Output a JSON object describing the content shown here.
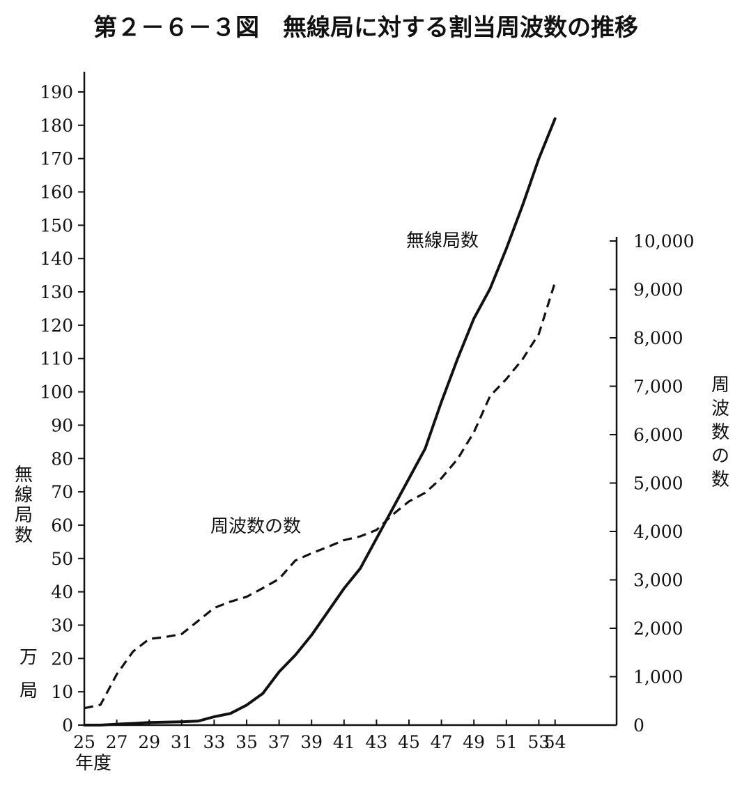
{
  "chart_data": {
    "type": "line",
    "title": "第２－６－３図　無線局に対する割当周波数の推移",
    "xlabel": "年度",
    "x_tick_labels": [
      "25",
      "27",
      "29",
      "31",
      "33",
      "35",
      "37",
      "39",
      "41",
      "43",
      "45",
      "47",
      "49",
      "51",
      "53",
      "54"
    ],
    "x_range": [
      25,
      54
    ],
    "left_axis": {
      "label": "無線局数",
      "unit": "万局",
      "unit_chars": [
        "万",
        "局"
      ],
      "range": [
        0,
        190
      ],
      "ticks": [
        0,
        10,
        20,
        30,
        40,
        50,
        60,
        70,
        80,
        90,
        100,
        110,
        120,
        130,
        140,
        150,
        160,
        170,
        180,
        190
      ]
    },
    "right_axis": {
      "label": "周波数の数",
      "range": [
        0,
        10000
      ],
      "ticks": [
        0,
        1000,
        2000,
        3000,
        4000,
        5000,
        6000,
        7000,
        8000,
        9000,
        10000
      ],
      "tick_labels": [
        "0",
        "1,000",
        "2,000",
        "3,000",
        "4,000",
        "5,000",
        "6,000",
        "7,000",
        "8,000",
        "9,000",
        "10,000"
      ]
    },
    "series": [
      {
        "name": "無線局数",
        "axis": "left",
        "style": "solid",
        "x": [
          25,
          26,
          27,
          28,
          29,
          30,
          31,
          32,
          33,
          34,
          35,
          36,
          37,
          38,
          39,
          40,
          41,
          42,
          43,
          44,
          45,
          46,
          47,
          48,
          49,
          50,
          51,
          52,
          53,
          54
        ],
        "values": [
          0,
          0,
          0.3,
          0.5,
          0.8,
          0.9,
          1,
          1.2,
          2.5,
          3.5,
          6,
          9.5,
          16,
          21,
          27,
          34,
          41,
          47,
          56,
          65,
          74,
          83,
          97,
          110,
          122,
          131,
          143,
          156,
          170,
          182
        ]
      },
      {
        "name": "周波数の数",
        "axis": "right",
        "style": "dashed",
        "x": [
          25,
          26,
          27,
          28,
          29,
          30,
          31,
          32,
          33,
          34,
          35,
          36,
          37,
          38,
          39,
          40,
          41,
          42,
          43,
          44,
          45,
          46,
          47,
          48,
          49,
          50,
          51,
          52,
          53,
          54
        ],
        "values": [
          350,
          420,
          1050,
          1520,
          1780,
          1820,
          1880,
          2150,
          2420,
          2550,
          2650,
          2830,
          3020,
          3400,
          3550,
          3680,
          3820,
          3900,
          4030,
          4350,
          4620,
          4800,
          5100,
          5500,
          6050,
          6800,
          7150,
          7560,
          8080,
          9150
        ]
      }
    ],
    "annotations": [
      {
        "text": "無線局数",
        "series": "無線局数"
      },
      {
        "text": "周波数の数",
        "series": "周波数の数"
      }
    ],
    "grid": false,
    "legend": "none"
  }
}
